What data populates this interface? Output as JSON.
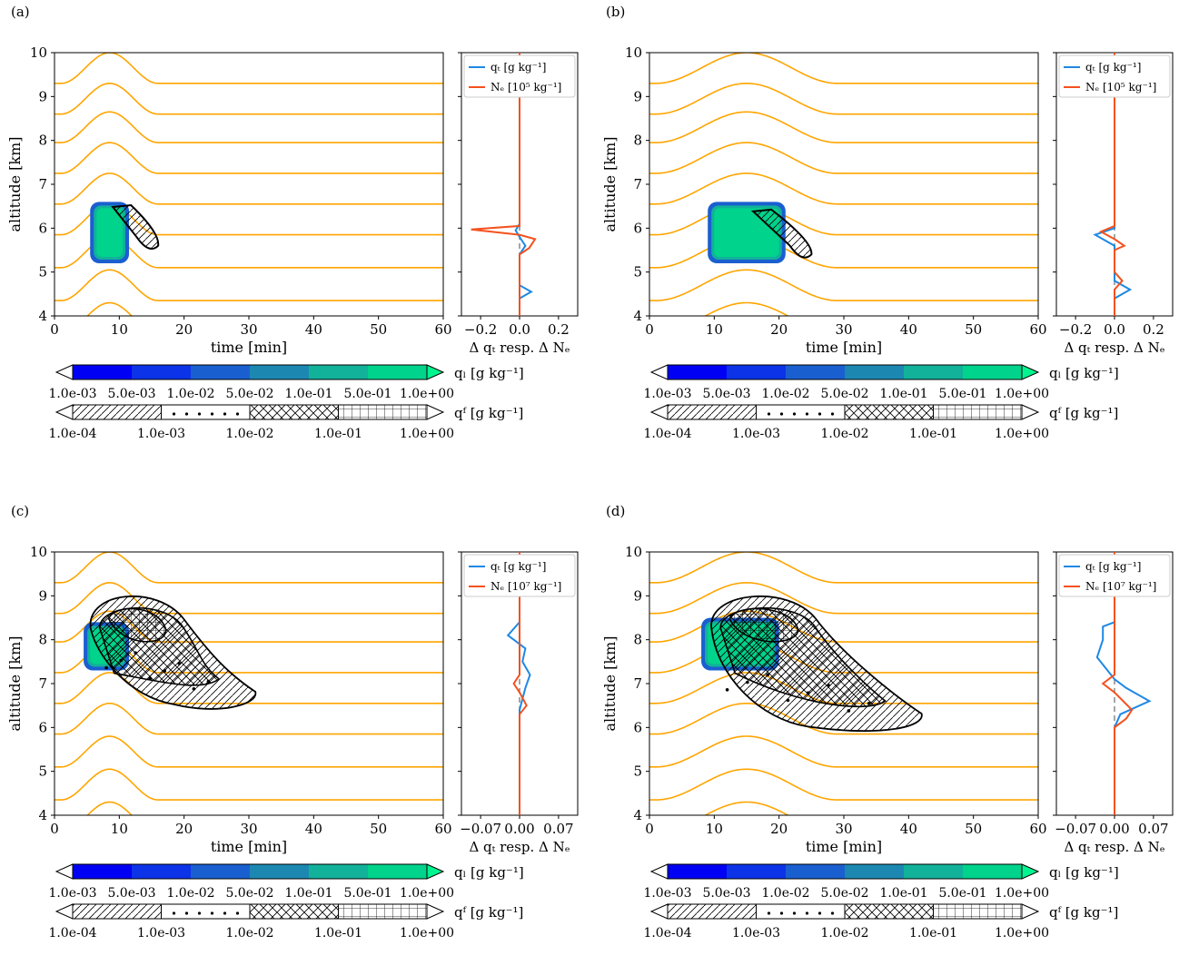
{
  "colors": {
    "isentrope": "#FFA500",
    "qt_line": "#1E88E5",
    "nd_line": "#F4511E",
    "dashed_zero": "#808080",
    "ql_levels": [
      "#0000F5",
      "#0C33E8",
      "#1A5FD0",
      "#1C88B2",
      "#12B19A",
      "#00D38B",
      "#00F590"
    ]
  },
  "shared": {
    "xlabel": "time [min]",
    "ylabel": "altitude [km]",
    "x_ticks": [
      "0",
      "10",
      "20",
      "30",
      "40",
      "50",
      "60"
    ],
    "y_ticks": [
      "4",
      "5",
      "6",
      "7",
      "8",
      "9",
      "10"
    ],
    "ql_colorbar_label": "qₗ [g kg⁻¹]",
    "ql_colorbar_ticks": [
      "1.0e-03",
      "5.0e-03",
      "1.0e-02",
      "5.0e-02",
      "1.0e-01",
      "5.0e-01",
      "1.0e+00"
    ],
    "qf_colorbar_label": "qᶠ [g kg⁻¹]",
    "qf_colorbar_ticks": [
      "1.0e-04",
      "1.0e-03",
      "1.0e-02",
      "1.0e-01",
      "1.0e+00"
    ],
    "side_xlabel": "Δ qₜ resp. Δ Nₑ",
    "legend_qt": "qₜ [g kg⁻¹]"
  },
  "chart_data": [
    {
      "panel_label": "(a)",
      "type": "contour",
      "legend_nd": "Nₑ [10⁵ kg⁻¹]",
      "xlim": [
        0,
        60
      ],
      "ylim": [
        4,
        10
      ],
      "wave_center_min": 8.5,
      "wave_half_width_min": 7.5,
      "wave_amplitude_km": 0.7,
      "isentrope_base_km": [
        3.6,
        4.35,
        5.1,
        5.85,
        6.55,
        7.25,
        7.95,
        8.6,
        9.3
      ],
      "ql_region": {
        "t_center": 8.5,
        "alt_min": 5.2,
        "alt_max": 6.6,
        "half_width_min": 3.0
      },
      "qf_region": {
        "type": "tail",
        "t_start": 9,
        "t_end": 16,
        "alt_start": 6.4,
        "alt_end": 5.6
      },
      "side_panel": {
        "xlim": [
          -0.3,
          0.3
        ],
        "xticks": [
          "−0.2",
          "0.0",
          "0.2"
        ],
        "qt": [
          [
            0,
            4.0
          ],
          [
            0,
            4.4
          ],
          [
            0.06,
            4.55
          ],
          [
            0,
            4.7
          ],
          [
            0,
            5.4
          ],
          [
            0.03,
            5.6
          ],
          [
            0,
            5.8
          ],
          [
            -0.02,
            5.95
          ],
          [
            0,
            6.1
          ],
          [
            0,
            10
          ]
        ],
        "nd": [
          [
            0,
            4.0
          ],
          [
            0,
            5.4
          ],
          [
            0.05,
            5.55
          ],
          [
            0.08,
            5.75
          ],
          [
            0,
            5.85
          ],
          [
            -0.25,
            5.97
          ],
          [
            0,
            6.05
          ],
          [
            0,
            10
          ]
        ]
      }
    },
    {
      "panel_label": "(b)",
      "type": "contour",
      "legend_nd": "Nₑ [10⁵ kg⁻¹]",
      "xlim": [
        0,
        60
      ],
      "ylim": [
        4,
        10
      ],
      "wave_center_min": 15,
      "wave_half_width_min": 14,
      "wave_amplitude_km": 0.7,
      "isentrope_base_km": [
        3.6,
        4.35,
        5.1,
        5.85,
        6.55,
        7.25,
        7.95,
        8.6,
        9.3
      ],
      "ql_region": {
        "t_center": 15,
        "alt_min": 5.2,
        "alt_max": 6.6,
        "half_width_min": 6.0
      },
      "qf_region": {
        "type": "tail",
        "t_start": 16,
        "t_end": 25,
        "alt_start": 6.3,
        "alt_end": 5.4
      },
      "side_panel": {
        "xlim": [
          -0.3,
          0.3
        ],
        "xticks": [
          "−0.2",
          "0.0",
          "0.2"
        ],
        "qt": [
          [
            0,
            4.0
          ],
          [
            0,
            4.4
          ],
          [
            0.08,
            4.6
          ],
          [
            0,
            4.8
          ],
          [
            0,
            5.6
          ],
          [
            -0.1,
            5.85
          ],
          [
            0,
            6.0
          ],
          [
            0,
            10
          ]
        ],
        "nd": [
          [
            0,
            4.0
          ],
          [
            0,
            4.6
          ],
          [
            0.04,
            4.8
          ],
          [
            0,
            5.0
          ],
          [
            0,
            5.5
          ],
          [
            0.05,
            5.6
          ],
          [
            0,
            5.75
          ],
          [
            -0.07,
            5.92
          ],
          [
            0,
            6.05
          ],
          [
            0,
            10
          ]
        ]
      }
    },
    {
      "panel_label": "(c)",
      "type": "contour",
      "legend_nd": "Nₑ [10⁷ kg⁻¹]",
      "xlim": [
        0,
        60
      ],
      "ylim": [
        4,
        10
      ],
      "wave_center_min": 8.5,
      "wave_half_width_min": 7.5,
      "wave_amplitude_km": 0.7,
      "isentrope_base_km": [
        3.6,
        4.35,
        5.1,
        5.85,
        6.55,
        7.25,
        7.95,
        8.6,
        9.3
      ],
      "ql_region": {
        "t_center": 8.0,
        "alt_min": 7.3,
        "alt_max": 8.4,
        "half_width_min": 3.5
      },
      "qf_region": {
        "type": "blob",
        "t_start": 5,
        "t_end": 31,
        "alt_top": 9.1,
        "alt_bottom": 6.4
      },
      "side_panel": {
        "xlim": [
          -0.1,
          0.1
        ],
        "xticks": [
          "−0.07",
          "0.00",
          "0.07"
        ],
        "qt": [
          [
            0,
            4.0
          ],
          [
            0,
            6.4
          ],
          [
            0.01,
            6.9
          ],
          [
            0.018,
            7.2
          ],
          [
            0.005,
            7.5
          ],
          [
            0.01,
            7.8
          ],
          [
            -0.02,
            8.1
          ],
          [
            0,
            8.4
          ],
          [
            0,
            10
          ]
        ],
        "nd": [
          [
            0,
            4.0
          ],
          [
            0,
            6.3
          ],
          [
            0.012,
            6.5
          ],
          [
            0,
            6.8
          ],
          [
            -0.01,
            7.0
          ],
          [
            0,
            7.2
          ],
          [
            0,
            10
          ]
        ]
      }
    },
    {
      "panel_label": "(d)",
      "type": "contour",
      "legend_nd": "Nₑ [10⁷ kg⁻¹]",
      "xlim": [
        0,
        60
      ],
      "ylim": [
        4,
        10
      ],
      "wave_center_min": 15,
      "wave_half_width_min": 14,
      "wave_amplitude_km": 0.7,
      "isentrope_base_km": [
        3.6,
        4.35,
        5.1,
        5.85,
        6.55,
        7.25,
        7.95,
        8.6,
        9.3
      ],
      "ql_region": {
        "t_center": 14.0,
        "alt_min": 7.3,
        "alt_max": 8.5,
        "half_width_min": 6.0
      },
      "qf_region": {
        "type": "blob",
        "t_start": 9,
        "t_end": 42,
        "alt_top": 9.1,
        "alt_bottom": 5.9
      },
      "side_panel": {
        "xlim": [
          -0.1,
          0.1
        ],
        "xticks": [
          "−0.07",
          "0.00",
          "0.07"
        ],
        "qt": [
          [
            0,
            4.0
          ],
          [
            0,
            6.0
          ],
          [
            0.01,
            6.3
          ],
          [
            0.06,
            6.6
          ],
          [
            0.02,
            6.9
          ],
          [
            0,
            7.1
          ],
          [
            -0.03,
            7.6
          ],
          [
            -0.02,
            8.0
          ],
          [
            -0.02,
            8.3
          ],
          [
            0,
            8.4
          ],
          [
            0,
            10
          ]
        ],
        "nd": [
          [
            0,
            4.0
          ],
          [
            0,
            6.0
          ],
          [
            0.02,
            6.2
          ],
          [
            0.03,
            6.4
          ],
          [
            0,
            6.8
          ],
          [
            -0.02,
            7.0
          ],
          [
            0,
            7.2
          ],
          [
            0,
            10
          ]
        ]
      }
    }
  ]
}
